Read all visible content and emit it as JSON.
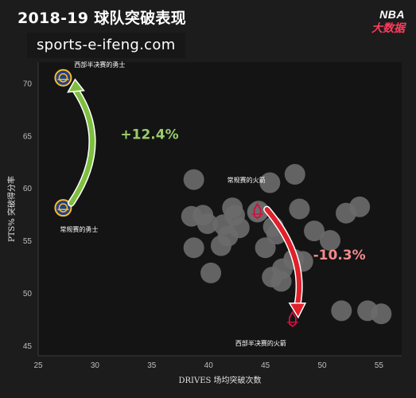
{
  "header": {
    "title": "2018-19 球队突破表现",
    "watermark": "sports-e-ifeng.com",
    "logo_text_top": "NBA",
    "logo_text_bottom": "大数据"
  },
  "colors": {
    "background": "#1c1c1c",
    "plot_background": "#141414",
    "bubble": "#6a6a6a",
    "up_arrow": "#7fbf3f",
    "up_text": "#9acb6a",
    "down_arrow": "#e0202a",
    "down_text": "#f28a8a",
    "axis_text": "#bdbdbd",
    "logo_accent": "#ff3b5c"
  },
  "chart_data": {
    "type": "scatter",
    "title": "2018-19 球队突破表现",
    "xlabel": "DRIVES 场均突破次数",
    "ylabel": "PTS% 突破得分率",
    "xlim": [
      25,
      57
    ],
    "ylim": [
      44,
      72
    ],
    "xticks": [
      25,
      30,
      35,
      40,
      45,
      50,
      55
    ],
    "yticks": [
      45,
      50,
      55,
      60,
      65,
      70
    ],
    "grid": false,
    "league_teams": {
      "x": [
        38.7,
        38.7,
        41.1,
        41.7,
        42.3,
        42.7,
        39.9,
        45.4,
        44.4,
        44.3,
        47.6,
        48.0,
        53.3,
        49.3,
        42.1,
        45.7,
        45.0,
        46.0,
        47.5,
        40.2,
        52.1,
        55.2,
        46.4,
        54.0,
        51.7,
        48.3,
        45.6,
        39.5,
        38.5,
        50.7,
        46.5,
        41.3
      ],
      "y": [
        60.8,
        54.3,
        54.5,
        55.4,
        57.4,
        56.2,
        56.6,
        60.5,
        57.8,
        57.7,
        61.3,
        58.0,
        58.2,
        55.9,
        58.1,
        56.3,
        54.3,
        55.6,
        53.2,
        51.9,
        57.6,
        48.0,
        51.1,
        48.3,
        48.3,
        53.0,
        51.5,
        57.4,
        57.3,
        55.0,
        52.3,
        56.5
      ]
    },
    "warriors": {
      "label_top": "西部半决赛的勇士",
      "label_bottom": "常规赛的勇士",
      "points": [
        {
          "x": 27.2,
          "y": 70.5
        },
        {
          "x": 27.2,
          "y": 58.1
        }
      ]
    },
    "rockets": {
      "label_top": "常规赛的火箭",
      "label_bottom": "西部半决赛的火箭",
      "points": [
        {
          "x": 44.3,
          "y": 57.8
        },
        {
          "x": 47.4,
          "y": 47.5
        }
      ]
    },
    "annotations": {
      "warriors_change": "+12.4%",
      "rockets_change": "-10.3%"
    }
  }
}
